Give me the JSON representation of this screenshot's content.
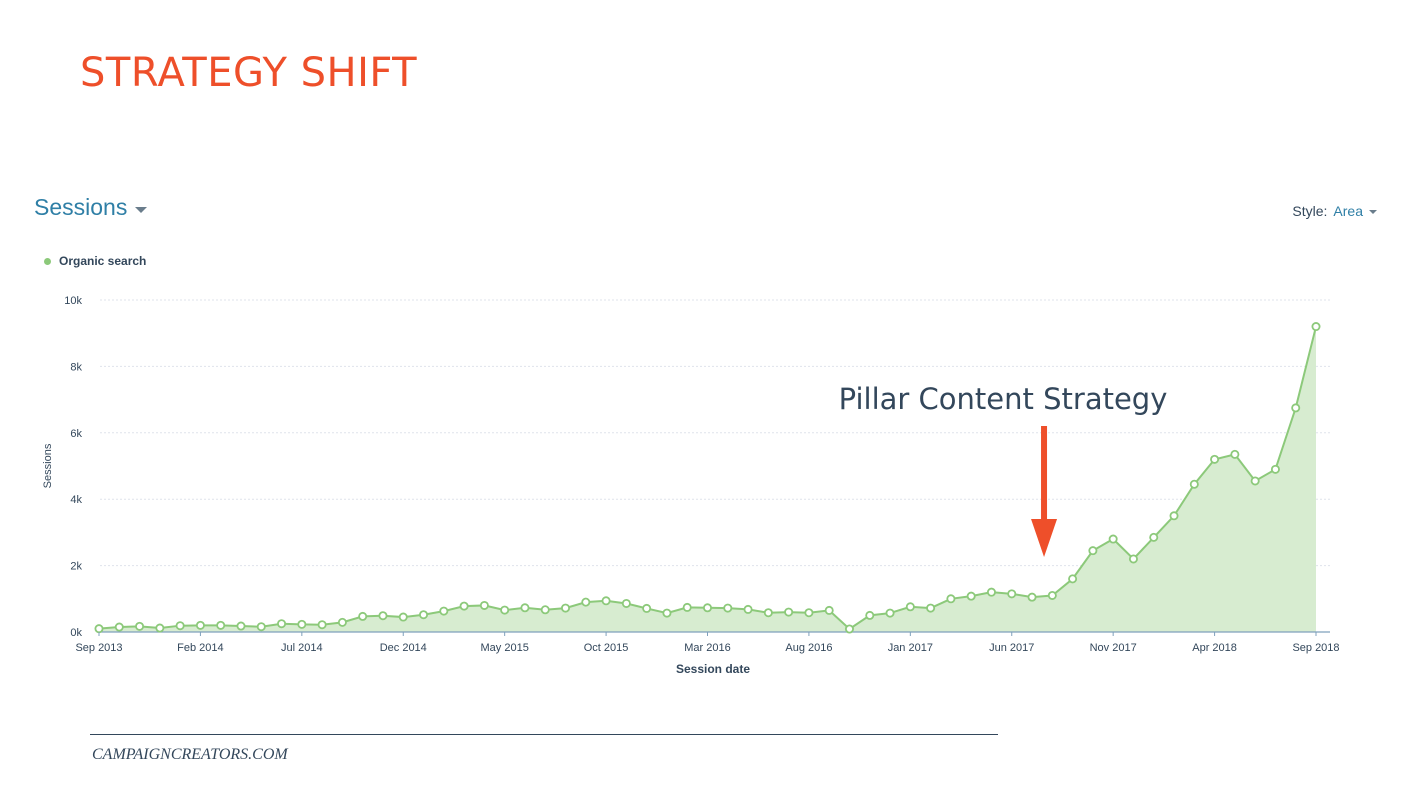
{
  "slide": {
    "title": "STRATEGY SHIFT",
    "footer": "CAMPAIGNCREATORS.COM"
  },
  "report": {
    "title": "Sessions",
    "style_label": "Style:",
    "style_value": "Area"
  },
  "colors": {
    "title": "#ee4f2a",
    "series": "#8cc97a",
    "area": "#d7ecd0",
    "annotation_arrow": "#ee4f2a",
    "annotation_text": "#33475b"
  },
  "chart_data": {
    "type": "area",
    "title": "",
    "xlabel": "Session date",
    "ylabel": "Sessions",
    "ylim": [
      0,
      10000
    ],
    "yticks": [
      0,
      2000,
      4000,
      6000,
      8000,
      10000
    ],
    "ytick_labels": [
      "0k",
      "2k",
      "4k",
      "6k",
      "8k",
      "10k"
    ],
    "xtick_labels": [
      "Sep 2013",
      "Feb 2014",
      "Jul 2014",
      "Dec 2014",
      "May 2015",
      "Oct 2015",
      "Mar 2016",
      "Aug 2016",
      "Jan 2017",
      "Jun 2017",
      "Nov 2017",
      "Apr 2018",
      "Sep 2018"
    ],
    "legend": {
      "position": "top-left",
      "entries": [
        "Organic search"
      ]
    },
    "grid": true,
    "series": [
      {
        "name": "Organic search",
        "x": [
          "Sep 2013",
          "Oct 2013",
          "Nov 2013",
          "Dec 2013",
          "Jan 2014",
          "Feb 2014",
          "Mar 2014",
          "Apr 2014",
          "May 2014",
          "Jun 2014",
          "Jul 2014",
          "Aug 2014",
          "Sep 2014",
          "Oct 2014",
          "Nov 2014",
          "Dec 2014",
          "Jan 2015",
          "Feb 2015",
          "Mar 2015",
          "Apr 2015",
          "May 2015",
          "Jun 2015",
          "Jul 2015",
          "Aug 2015",
          "Sep 2015",
          "Oct 2015",
          "Nov 2015",
          "Dec 2015",
          "Jan 2016",
          "Feb 2016",
          "Mar 2016",
          "Apr 2016",
          "May 2016",
          "Jun 2016",
          "Jul 2016",
          "Aug 2016",
          "Sep 2016",
          "Oct 2016",
          "Nov 2016",
          "Dec 2016",
          "Jan 2017",
          "Feb 2017",
          "Mar 2017",
          "Apr 2017",
          "May 2017",
          "Jun 2017",
          "Jul 2017",
          "Aug 2017",
          "Sep 2017",
          "Oct 2017",
          "Nov 2017",
          "Dec 2017",
          "Jan 2018",
          "Feb 2018",
          "Mar 2018",
          "Apr 2018",
          "May 2018",
          "Jun 2018",
          "Jul 2018",
          "Aug 2018",
          "Sep 2018"
        ],
        "values": [
          100,
          150,
          170,
          120,
          190,
          200,
          200,
          180,
          160,
          250,
          230,
          220,
          290,
          470,
          490,
          450,
          520,
          630,
          780,
          800,
          660,
          730,
          670,
          720,
          900,
          940,
          860,
          710,
          570,
          740,
          730,
          720,
          680,
          580,
          600,
          580,
          650,
          90,
          500,
          570,
          760,
          720,
          1000,
          1080,
          1200,
          1150,
          1050,
          1100,
          1600,
          2450,
          2800,
          2200,
          2850,
          3500,
          4450,
          5200,
          5350,
          4550,
          4900,
          6750,
          9200
        ]
      }
    ],
    "annotations": [
      {
        "text": "Pillar Content Strategy",
        "at": "Jul 2017"
      }
    ]
  }
}
